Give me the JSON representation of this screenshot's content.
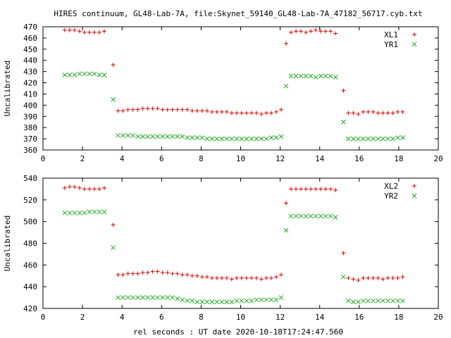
{
  "title": "HIRES continuum, GL48-Lab-7A, file:Skynet_59140_GL48-Lab-7A_47182_56717.cyb.txt",
  "xlabel": "rel seconds : UT date 2020-10-18T17:24:47.560",
  "colors": {
    "red": "#dd0000",
    "green": "#22aa22"
  },
  "chart_data": [
    {
      "type": "scatter",
      "ylabel": "Uncalibrated",
      "xlim": [
        0,
        20
      ],
      "ylim": [
        360,
        470
      ],
      "xticks": [
        0,
        2,
        4,
        6,
        8,
        10,
        12,
        14,
        16,
        18,
        20
      ],
      "yticks": [
        360,
        370,
        380,
        390,
        400,
        410,
        420,
        430,
        440,
        450,
        460,
        470
      ],
      "legend_position": "top-right",
      "series": [
        {
          "name": "XL1",
          "marker": "plus",
          "color": "#dd0000",
          "x": [
            1.1,
            1.35,
            1.6,
            1.85,
            2.1,
            2.35,
            2.6,
            2.85,
            3.1,
            3.55,
            3.8,
            4.05,
            4.3,
            4.55,
            4.8,
            5.05,
            5.3,
            5.55,
            5.8,
            6.05,
            6.3,
            6.55,
            6.8,
            7.05,
            7.3,
            7.55,
            7.8,
            8.05,
            8.3,
            8.55,
            8.8,
            9.05,
            9.3,
            9.55,
            9.8,
            10.05,
            10.3,
            10.55,
            10.8,
            11.05,
            11.3,
            11.55,
            11.8,
            12.05,
            12.3,
            12.55,
            12.8,
            13.05,
            13.3,
            13.55,
            13.8,
            14.05,
            14.3,
            14.55,
            14.8,
            15.2,
            15.45,
            15.7,
            15.95,
            16.2,
            16.45,
            16.7,
            16.95,
            17.2,
            17.45,
            17.7,
            17.95,
            18.2
          ],
          "y": [
            467,
            467,
            467,
            466,
            465,
            465,
            465,
            465,
            466,
            436,
            395,
            395,
            396,
            396,
            396,
            397,
            397,
            397,
            397,
            396,
            396,
            396,
            396,
            396,
            396,
            395,
            395,
            395,
            395,
            394,
            394,
            394,
            394,
            393,
            393,
            393,
            393,
            393,
            393,
            392,
            393,
            393,
            394,
            396,
            455,
            465,
            466,
            466,
            465,
            466,
            467,
            466,
            466,
            466,
            464,
            413,
            393,
            393,
            392,
            394,
            394,
            394,
            393,
            393,
            393,
            393,
            394,
            394
          ]
        },
        {
          "name": "YR1",
          "marker": "cross",
          "color": "#22aa22",
          "x": [
            1.1,
            1.35,
            1.6,
            1.85,
            2.1,
            2.35,
            2.6,
            2.85,
            3.1,
            3.55,
            3.8,
            4.05,
            4.3,
            4.55,
            4.8,
            5.05,
            5.3,
            5.55,
            5.8,
            6.05,
            6.3,
            6.55,
            6.8,
            7.05,
            7.3,
            7.55,
            7.8,
            8.05,
            8.3,
            8.55,
            8.8,
            9.05,
            9.3,
            9.55,
            9.8,
            10.05,
            10.3,
            10.55,
            10.8,
            11.05,
            11.3,
            11.55,
            11.8,
            12.05,
            12.3,
            12.55,
            12.8,
            13.05,
            13.3,
            13.55,
            13.8,
            14.05,
            14.3,
            14.55,
            14.8,
            15.2,
            15.45,
            15.7,
            15.95,
            16.2,
            16.45,
            16.7,
            16.95,
            17.2,
            17.45,
            17.7,
            17.95,
            18.2
          ],
          "y": [
            427,
            427,
            427,
            428,
            428,
            428,
            428,
            427,
            427,
            405,
            373,
            373,
            373,
            373,
            372,
            372,
            372,
            372,
            372,
            372,
            372,
            372,
            372,
            372,
            371,
            371,
            371,
            371,
            370,
            370,
            370,
            370,
            370,
            370,
            370,
            370,
            370,
            370,
            370,
            370,
            370,
            371,
            371,
            372,
            417,
            426,
            426,
            426,
            426,
            426,
            425,
            426,
            426,
            426,
            425,
            385,
            370,
            370,
            370,
            370,
            370,
            370,
            370,
            370,
            370,
            370,
            371,
            371
          ]
        }
      ]
    },
    {
      "type": "scatter",
      "ylabel": "Uncalibrated",
      "xlim": [
        0,
        20
      ],
      "ylim": [
        420,
        540
      ],
      "xticks": [
        0,
        2,
        4,
        6,
        8,
        10,
        12,
        14,
        16,
        18,
        20
      ],
      "yticks": [
        420,
        440,
        460,
        480,
        500,
        520,
        540
      ],
      "legend_position": "top-right",
      "series": [
        {
          "name": "XL2",
          "marker": "plus",
          "color": "#dd0000",
          "x": [
            1.1,
            1.35,
            1.6,
            1.85,
            2.1,
            2.35,
            2.6,
            2.85,
            3.1,
            3.55,
            3.8,
            4.05,
            4.3,
            4.55,
            4.8,
            5.05,
            5.3,
            5.55,
            5.8,
            6.05,
            6.3,
            6.55,
            6.8,
            7.05,
            7.3,
            7.55,
            7.8,
            8.05,
            8.3,
            8.55,
            8.8,
            9.05,
            9.3,
            9.55,
            9.8,
            10.05,
            10.3,
            10.55,
            10.8,
            11.05,
            11.3,
            11.55,
            11.8,
            12.05,
            12.3,
            12.55,
            12.8,
            13.05,
            13.3,
            13.55,
            13.8,
            14.05,
            14.3,
            14.55,
            14.8,
            15.2,
            15.45,
            15.7,
            15.95,
            16.2,
            16.45,
            16.7,
            16.95,
            17.2,
            17.45,
            17.7,
            17.95,
            18.2
          ],
          "y": [
            531,
            532,
            532,
            531,
            530,
            530,
            530,
            530,
            531,
            497,
            451,
            451,
            452,
            452,
            452,
            453,
            453,
            454,
            454,
            453,
            453,
            452,
            452,
            451,
            451,
            450,
            450,
            449,
            449,
            448,
            448,
            448,
            448,
            447,
            448,
            448,
            448,
            448,
            448,
            447,
            448,
            448,
            449,
            451,
            517,
            530,
            530,
            530,
            530,
            530,
            530,
            530,
            530,
            530,
            529,
            471,
            448,
            447,
            446,
            448,
            448,
            448,
            448,
            447,
            448,
            448,
            448,
            449
          ]
        },
        {
          "name": "YR2",
          "marker": "cross",
          "color": "#22aa22",
          "x": [
            1.1,
            1.35,
            1.6,
            1.85,
            2.1,
            2.35,
            2.6,
            2.85,
            3.1,
            3.55,
            3.8,
            4.05,
            4.3,
            4.55,
            4.8,
            5.05,
            5.3,
            5.55,
            5.8,
            6.05,
            6.3,
            6.55,
            6.8,
            7.05,
            7.3,
            7.55,
            7.8,
            8.05,
            8.3,
            8.55,
            8.8,
            9.05,
            9.3,
            9.55,
            9.8,
            10.05,
            10.3,
            10.55,
            10.8,
            11.05,
            11.3,
            11.55,
            11.8,
            12.05,
            12.3,
            12.55,
            12.8,
            13.05,
            13.3,
            13.55,
            13.8,
            14.05,
            14.3,
            14.55,
            14.8,
            15.2,
            15.45,
            15.7,
            15.95,
            16.2,
            16.45,
            16.7,
            16.95,
            17.2,
            17.45,
            17.7,
            17.95,
            18.2
          ],
          "y": [
            508,
            508,
            508,
            508,
            508,
            509,
            509,
            509,
            509,
            476,
            430,
            430,
            430,
            430,
            430,
            430,
            430,
            430,
            430,
            430,
            430,
            430,
            429,
            428,
            427,
            427,
            426,
            426,
            426,
            426,
            426,
            426,
            426,
            426,
            427,
            427,
            427,
            427,
            428,
            428,
            428,
            428,
            428,
            430,
            492,
            505,
            505,
            505,
            505,
            505,
            505,
            505,
            505,
            505,
            504,
            449,
            427,
            426,
            426,
            427,
            427,
            427,
            427,
            427,
            427,
            427,
            427,
            427
          ]
        }
      ]
    }
  ]
}
